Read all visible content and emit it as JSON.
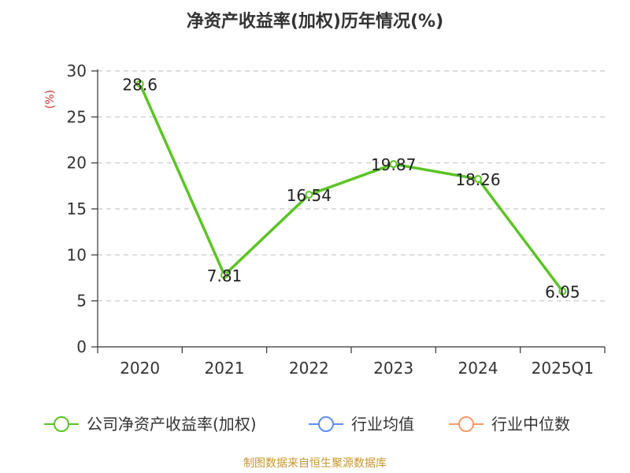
{
  "chart_data": {
    "type": "line",
    "title": "净资产收益率(加权)历年情况(%)",
    "ylabel": "(%)",
    "xlabel": "",
    "categories": [
      "2020",
      "2021",
      "2022",
      "2023",
      "2024",
      "2025Q1"
    ],
    "ylim": [
      0,
      30
    ],
    "yticks": [
      0,
      5,
      10,
      15,
      20,
      25,
      30
    ],
    "grid": true,
    "series": [
      {
        "name": "公司净资产收益率(加权)",
        "color": "#5cc425",
        "values": [
          28.6,
          7.81,
          16.54,
          19.87,
          18.26,
          6.05
        ],
        "labels": [
          "28.6",
          "7.81",
          "16.54",
          "19.87",
          "18.26",
          "6.05"
        ]
      }
    ],
    "legend": {
      "placement": "bottom",
      "items": [
        {
          "name": "公司净资产收益率(加权)",
          "color": "#5cc425"
        },
        {
          "name": "行业均值",
          "color": "#5b8ff9"
        },
        {
          "name": "行业中位数",
          "color": "#f59a6b"
        }
      ]
    },
    "source": "制图数据来自恒生聚源数据库"
  }
}
